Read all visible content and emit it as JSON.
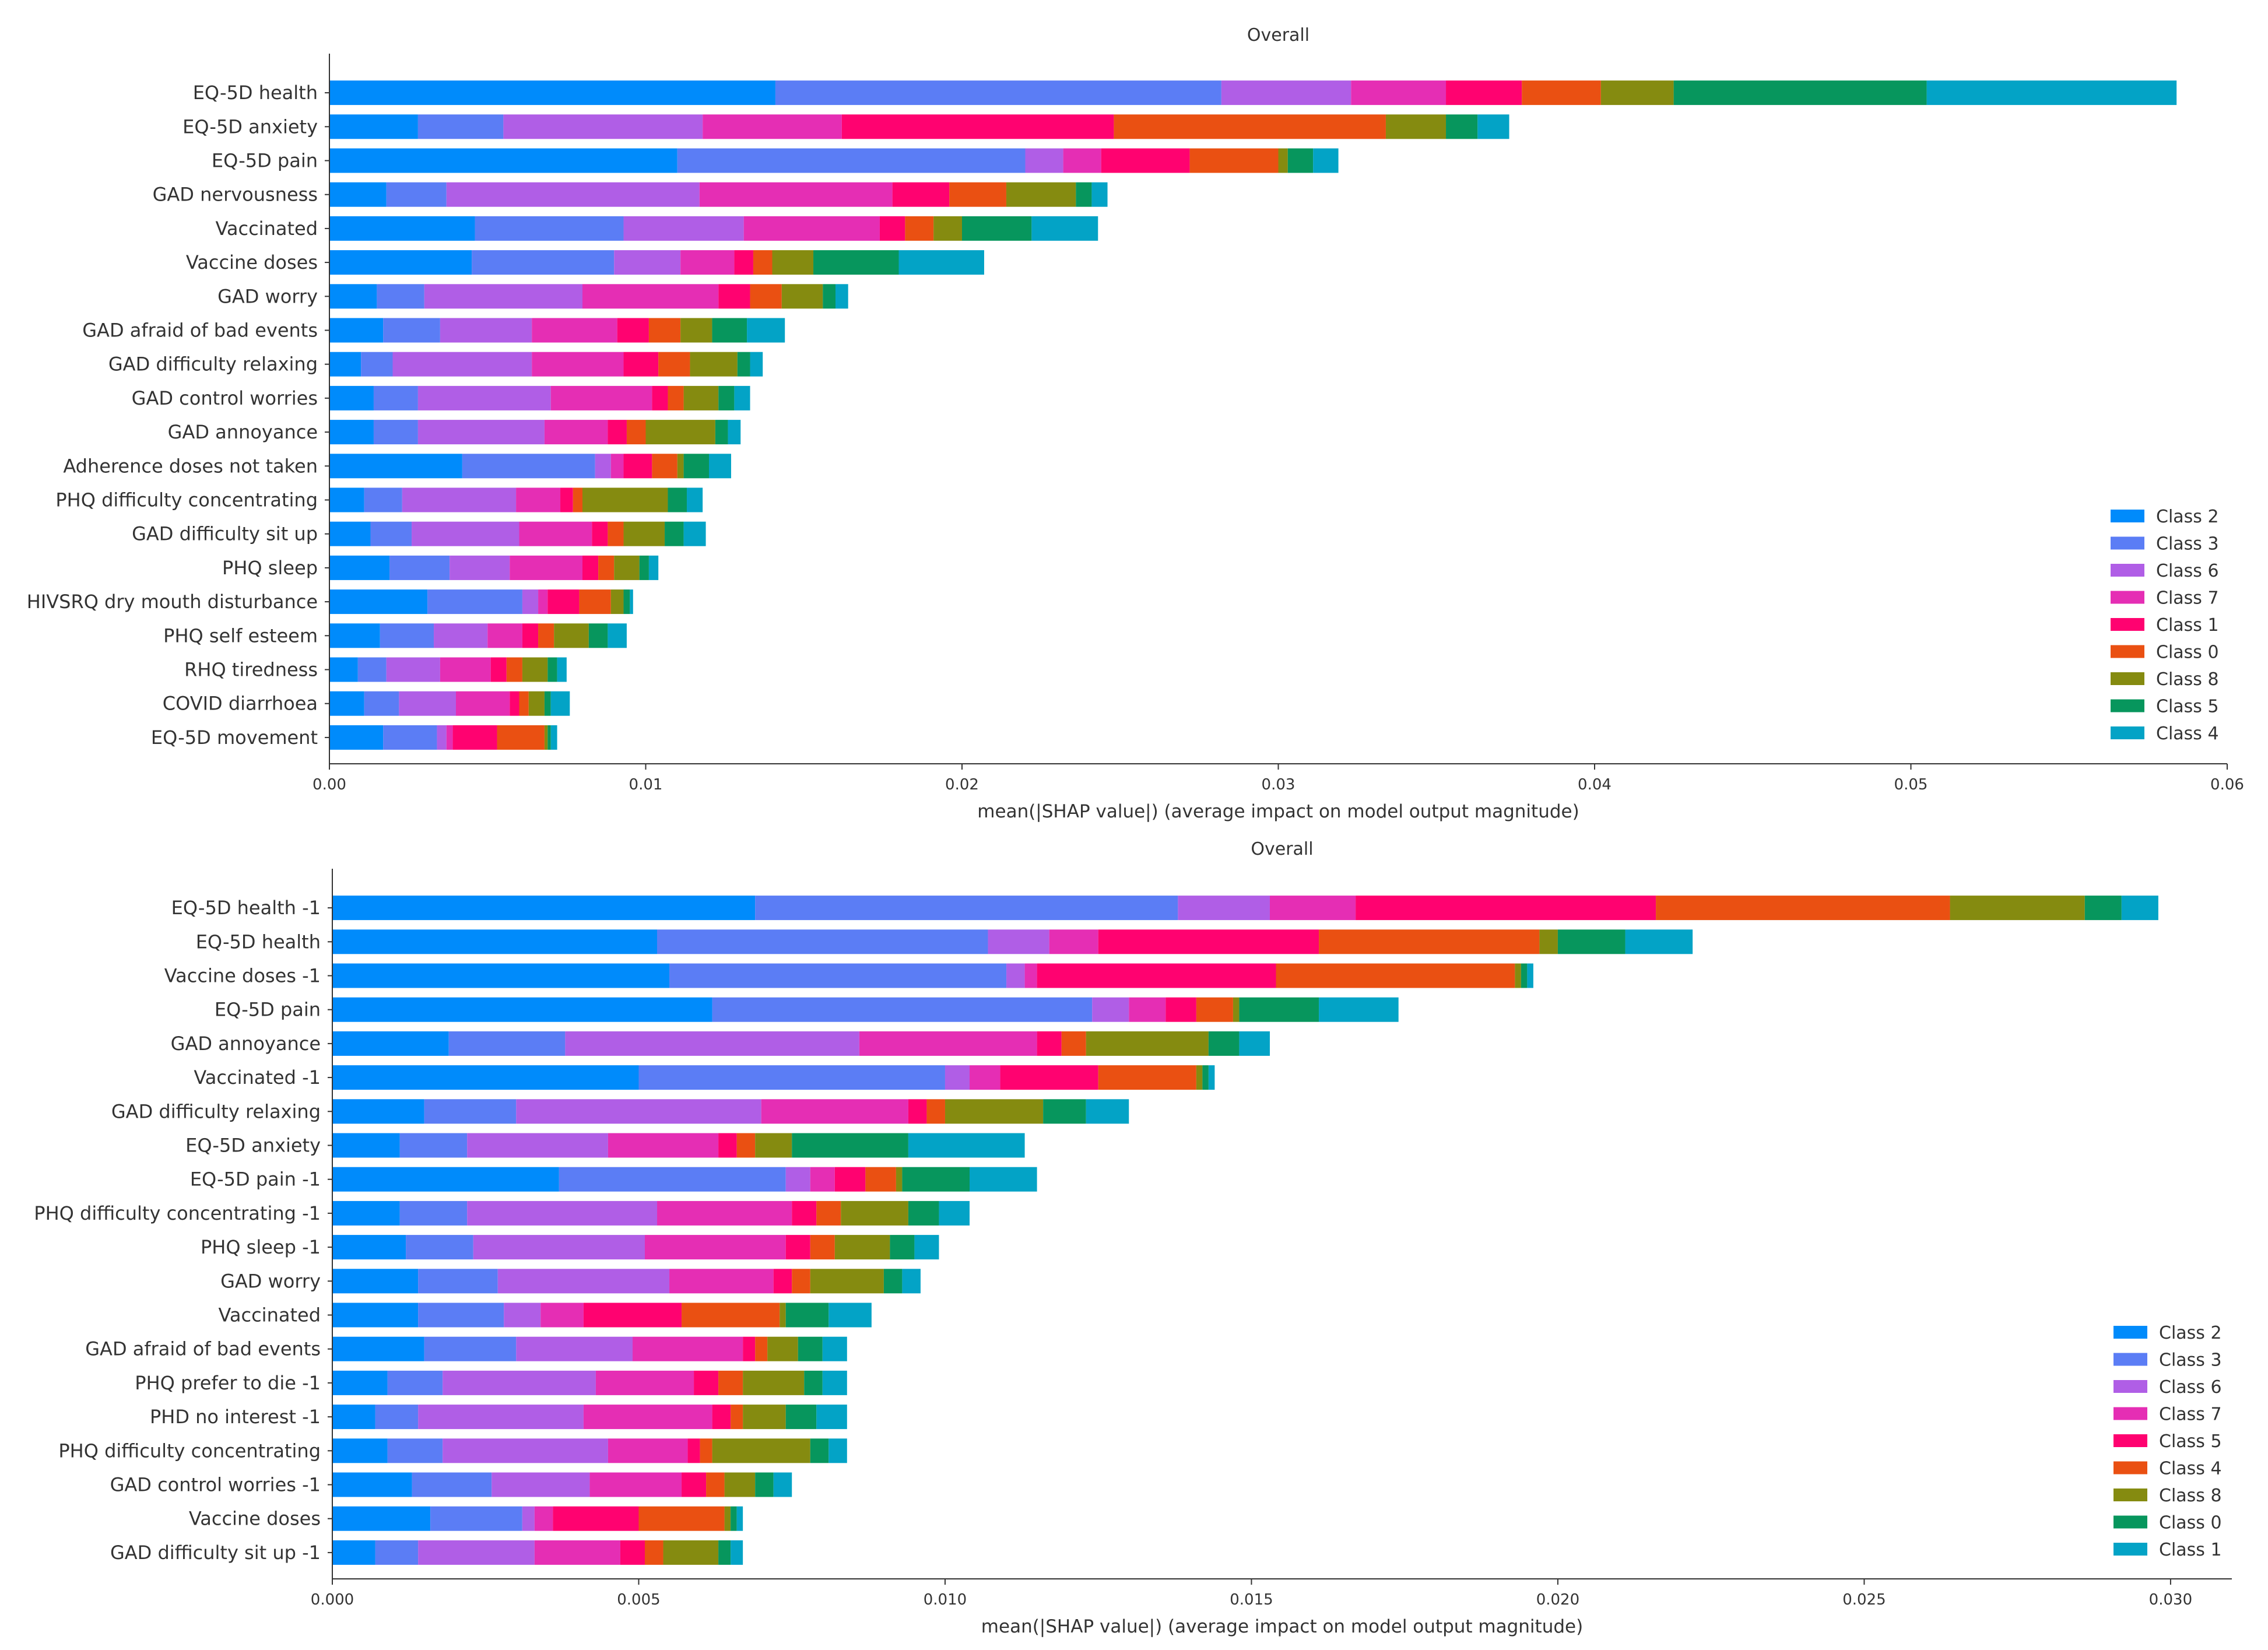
{
  "chart_data": [
    {
      "type": "bar",
      "stacked": true,
      "orientation": "horizontal",
      "title": "Overall",
      "xlabel": "mean(|SHAP value|) (average impact on model output magnitude)",
      "xlim": [
        0,
        0.06
      ],
      "xticks": [
        0.0,
        0.01,
        0.02,
        0.03,
        0.04,
        0.05,
        0.06
      ],
      "xtick_labels": [
        "0.00",
        "0.01",
        "0.02",
        "0.03",
        "0.04",
        "0.05",
        "0.06"
      ],
      "legend_position": "lower-right",
      "categories": [
        "EQ-5D health",
        "EQ-5D anxiety",
        "EQ-5D pain",
        "GAD nervousness",
        "Vaccinated",
        "Vaccine doses",
        "GAD worry",
        "GAD afraid of bad events",
        "GAD difficulty relaxing",
        "GAD control worries",
        "GAD annoyance",
        "Adherence doses not taken",
        "PHQ difficulty concentrating",
        "GAD difficulty sit up",
        "PHQ sleep",
        "HIVSRQ dry mouth disturbance",
        "PHQ self esteem",
        "RHQ tiredness",
        "COVID diarrhoea",
        "EQ-5D movement"
      ],
      "series": [
        {
          "name": "Class 2",
          "color": "#008bfb",
          "values": [
            0.0141,
            0.0028,
            0.011,
            0.0018,
            0.0046,
            0.0045,
            0.0015,
            0.0017,
            0.001,
            0.0014,
            0.0014,
            0.0042,
            0.0011,
            0.0013,
            0.0019,
            0.0031,
            0.0016,
            0.0009,
            0.0011,
            0.0017
          ]
        },
        {
          "name": "Class 3",
          "color": "#5b7df5",
          "values": [
            0.0141,
            0.0027,
            0.011,
            0.0019,
            0.0047,
            0.0045,
            0.0015,
            0.0018,
            0.001,
            0.0014,
            0.0014,
            0.0042,
            0.0012,
            0.0013,
            0.0019,
            0.003,
            0.0017,
            0.0009,
            0.0011,
            0.0017
          ]
        },
        {
          "name": "Class 6",
          "color": "#b05ee6",
          "values": [
            0.0041,
            0.0063,
            0.0012,
            0.008,
            0.0038,
            0.0021,
            0.005,
            0.0029,
            0.0044,
            0.0042,
            0.004,
            0.0005,
            0.0036,
            0.0034,
            0.0019,
            0.0005,
            0.0017,
            0.0017,
            0.0018,
            0.0003
          ]
        },
        {
          "name": "Class 7",
          "color": "#e52eb4",
          "values": [
            0.003,
            0.0044,
            0.0012,
            0.0061,
            0.0043,
            0.0017,
            0.0043,
            0.0027,
            0.0029,
            0.0032,
            0.002,
            0.0004,
            0.0014,
            0.0023,
            0.0023,
            0.0003,
            0.0011,
            0.0016,
            0.0017,
            0.0002
          ]
        },
        {
          "name": "Class 1",
          "color": "#ff0270",
          "values": [
            0.0024,
            0.0086,
            0.0028,
            0.0018,
            0.0008,
            0.0006,
            0.001,
            0.001,
            0.0011,
            0.0005,
            0.0006,
            0.0009,
            0.0004,
            0.0005,
            0.0005,
            0.001,
            0.0005,
            0.0005,
            0.0003,
            0.0014
          ]
        },
        {
          "name": "Class 0",
          "color": "#ea5012",
          "values": [
            0.0025,
            0.0086,
            0.0028,
            0.0018,
            0.0009,
            0.0006,
            0.001,
            0.001,
            0.001,
            0.0005,
            0.0006,
            0.0008,
            0.0003,
            0.0005,
            0.0005,
            0.001,
            0.0005,
            0.0005,
            0.0003,
            0.0015
          ]
        },
        {
          "name": "Class 8",
          "color": "#858b10",
          "values": [
            0.0023,
            0.0019,
            0.0003,
            0.0022,
            0.0009,
            0.0013,
            0.0013,
            0.001,
            0.0015,
            0.0011,
            0.0022,
            0.0002,
            0.0027,
            0.0013,
            0.0008,
            0.0004,
            0.0011,
            0.0008,
            0.0005,
            0.0001
          ]
        },
        {
          "name": "Class 5",
          "color": "#07965d",
          "values": [
            0.008,
            0.001,
            0.0008,
            0.0005,
            0.0022,
            0.0027,
            0.0004,
            0.0011,
            0.0004,
            0.0005,
            0.0004,
            0.0008,
            0.0006,
            0.0006,
            0.0003,
            0.0002,
            0.0006,
            0.0003,
            0.0002,
            0.0001
          ]
        },
        {
          "name": "Class 4",
          "color": "#03a3c6",
          "values": [
            0.0079,
            0.001,
            0.0008,
            0.0005,
            0.0021,
            0.0027,
            0.0004,
            0.0012,
            0.0004,
            0.0005,
            0.0004,
            0.0007,
            0.0005,
            0.0007,
            0.0003,
            0.0001,
            0.0006,
            0.0003,
            0.0006,
            0.0002
          ]
        }
      ]
    },
    {
      "type": "bar",
      "stacked": true,
      "orientation": "horizontal",
      "title": "Overall",
      "xlabel": "mean(|SHAP value|) (average impact on model output magnitude)",
      "xlim": [
        0,
        0.031
      ],
      "xticks": [
        0.0,
        0.005,
        0.01,
        0.015,
        0.02,
        0.025,
        0.03
      ],
      "xtick_labels": [
        "0.000",
        "0.005",
        "0.010",
        "0.015",
        "0.020",
        "0.025",
        "0.030"
      ],
      "legend_position": "lower-right",
      "categories": [
        "EQ-5D health -1",
        "EQ-5D health",
        "Vaccine doses -1",
        "EQ-5D pain",
        "GAD annoyance",
        "Vaccinated -1",
        "GAD difficulty relaxing",
        "EQ-5D anxiety",
        "EQ-5D pain -1",
        "PHQ difficulty concentrating -1",
        "PHQ sleep -1",
        "GAD worry",
        "Vaccinated",
        "GAD afraid of bad events",
        "PHQ prefer to die -1",
        "PHD no interest -1",
        "PHQ difficulty concentrating",
        "GAD control worries -1",
        "Vaccine doses",
        "GAD difficulty sit up -1"
      ],
      "series": [
        {
          "name": "Class 2",
          "color": "#008bfb",
          "values": [
            0.0069,
            0.0053,
            0.0055,
            0.0062,
            0.0019,
            0.005,
            0.0015,
            0.0011,
            0.0037,
            0.0011,
            0.0012,
            0.0014,
            0.0014,
            0.0015,
            0.0009,
            0.0007,
            0.0009,
            0.0013,
            0.0016,
            0.0007
          ]
        },
        {
          "name": "Class 3",
          "color": "#5b7df5",
          "values": [
            0.0069,
            0.0054,
            0.0055,
            0.0062,
            0.0019,
            0.005,
            0.0015,
            0.0011,
            0.0037,
            0.0011,
            0.0011,
            0.0013,
            0.0014,
            0.0015,
            0.0009,
            0.0007,
            0.0009,
            0.0013,
            0.0015,
            0.0007
          ]
        },
        {
          "name": "Class 6",
          "color": "#b05ee6",
          "values": [
            0.0015,
            0.001,
            0.0003,
            0.0006,
            0.0048,
            0.0004,
            0.004,
            0.0023,
            0.0004,
            0.0031,
            0.0028,
            0.0028,
            0.0006,
            0.0019,
            0.0025,
            0.0027,
            0.0027,
            0.0016,
            0.0002,
            0.0019
          ]
        },
        {
          "name": "Class 7",
          "color": "#e52eb4",
          "values": [
            0.0014,
            0.0008,
            0.0002,
            0.0006,
            0.0029,
            0.0005,
            0.0024,
            0.0018,
            0.0004,
            0.0022,
            0.0023,
            0.0017,
            0.0007,
            0.0018,
            0.0016,
            0.0021,
            0.0013,
            0.0015,
            0.0003,
            0.0014
          ]
        },
        {
          "name": "Class 5",
          "color": "#ff0270",
          "values": [
            0.0049,
            0.0036,
            0.0039,
            0.0005,
            0.0004,
            0.0016,
            0.0003,
            0.0003,
            0.0005,
            0.0004,
            0.0004,
            0.0003,
            0.0016,
            0.0002,
            0.0004,
            0.0003,
            0.0002,
            0.0004,
            0.0014,
            0.0004
          ]
        },
        {
          "name": "Class 4",
          "color": "#ea5012",
          "values": [
            0.0048,
            0.0036,
            0.0039,
            0.0006,
            0.0004,
            0.0016,
            0.0003,
            0.0003,
            0.0005,
            0.0004,
            0.0004,
            0.0003,
            0.0016,
            0.0002,
            0.0004,
            0.0002,
            0.0002,
            0.0003,
            0.0014,
            0.0003
          ]
        },
        {
          "name": "Class 8",
          "color": "#858b10",
          "values": [
            0.0022,
            0.0003,
            0.0001,
            0.0001,
            0.002,
            0.0001,
            0.0016,
            0.0006,
            0.0001,
            0.0011,
            0.0009,
            0.0012,
            0.0001,
            0.0005,
            0.001,
            0.0007,
            0.0016,
            0.0005,
            0.0001,
            0.0009
          ]
        },
        {
          "name": "Class 0",
          "color": "#07965d",
          "values": [
            0.0006,
            0.0011,
            0.0001,
            0.0013,
            0.0005,
            0.0001,
            0.0007,
            0.0019,
            0.0011,
            0.0005,
            0.0004,
            0.0003,
            0.0007,
            0.0004,
            0.0003,
            0.0005,
            0.0003,
            0.0003,
            0.0001,
            0.0002
          ]
        },
        {
          "name": "Class 1",
          "color": "#03a3c6",
          "values": [
            0.0006,
            0.0011,
            0.0001,
            0.0013,
            0.0005,
            0.0001,
            0.0007,
            0.0019,
            0.0011,
            0.0005,
            0.0004,
            0.0003,
            0.0007,
            0.0004,
            0.0004,
            0.0005,
            0.0003,
            0.0003,
            0.0001,
            0.0002
          ]
        }
      ]
    }
  ]
}
